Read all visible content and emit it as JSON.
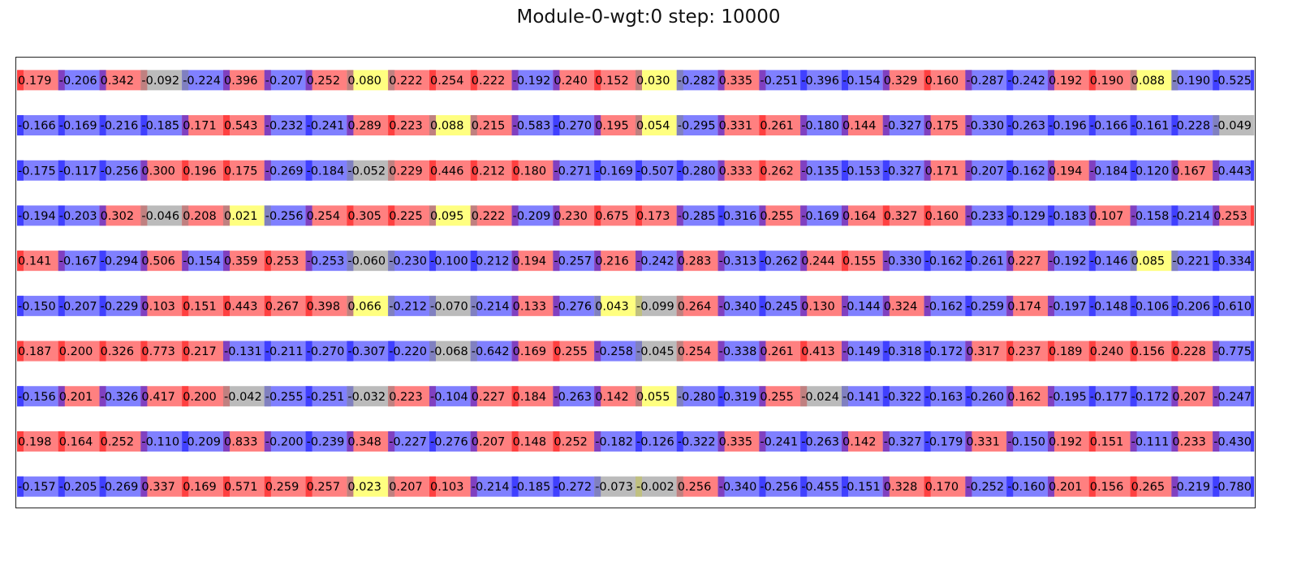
{
  "chart_data": {
    "type": "heatmap",
    "title": "Module-0-wgt:0 step: 10000",
    "xlabel": "",
    "ylabel": "",
    "grid": false,
    "legend": "none",
    "colors": {
      "positive": "#ff8080",
      "positive_edge": "#ff4040",
      "negative": "#8080ff",
      "negative_edge": "#4040ff",
      "near_zero": "#bbbbbb",
      "small_positive": "#ffff80",
      "mixed_edge": "#8040c0",
      "text": "#000000"
    },
    "rows": [
      [
        "0.179",
        "-0.206",
        "0.342",
        "-0.092",
        "-0.224",
        "0.396",
        "-0.207",
        "0.252",
        "0.080",
        "0.222",
        "0.254",
        "0.222",
        "-0.192",
        "0.240",
        "0.152",
        "0.030",
        "-0.282",
        "0.335",
        "-0.251",
        "-0.396",
        "-0.154",
        "0.329",
        "0.160",
        "-0.287",
        "-0.242",
        "0.192",
        "0.190",
        "0.088",
        "-0.190",
        "-0.525"
      ],
      [
        "-0.166",
        "-0.169",
        "-0.216",
        "-0.185",
        "0.171",
        "0.543",
        "-0.232",
        "-0.241",
        "0.289",
        "0.223",
        "0.088",
        "0.215",
        "-0.583",
        "-0.270",
        "0.195",
        "0.054",
        "-0.295",
        "0.331",
        "0.261",
        "-0.180",
        "0.144",
        "-0.327",
        "0.175",
        "-0.330",
        "-0.263",
        "-0.196",
        "-0.166",
        "-0.161",
        "-0.228",
        "-0.049"
      ],
      [
        "-0.175",
        "-0.117",
        "-0.256",
        "0.300",
        "0.196",
        "0.175",
        "-0.269",
        "-0.184",
        "-0.052",
        "0.229",
        "0.446",
        "0.212",
        "0.180",
        "-0.271",
        "-0.169",
        "-0.507",
        "-0.280",
        "0.333",
        "0.262",
        "-0.135",
        "-0.153",
        "-0.327",
        "0.171",
        "-0.207",
        "-0.162",
        "0.194",
        "-0.184",
        "-0.120",
        "0.167",
        "-0.443"
      ],
      [
        "-0.194",
        "-0.203",
        "0.302",
        "-0.046",
        "0.208",
        "0.021",
        "-0.256",
        "0.254",
        "0.305",
        "0.225",
        "0.095",
        "0.222",
        "-0.209",
        "0.230",
        "0.675",
        "0.173",
        "-0.285",
        "-0.316",
        "0.255",
        "-0.169",
        "0.164",
        "0.327",
        "0.160",
        "-0.233",
        "-0.129",
        "-0.183",
        "0.107",
        "-0.158",
        "-0.214",
        "0.253"
      ],
      [
        "0.141",
        "-0.167",
        "-0.294",
        "0.506",
        "-0.154",
        "0.359",
        "0.253",
        "-0.253",
        "-0.060",
        "-0.230",
        "-0.100",
        "-0.212",
        "0.194",
        "-0.257",
        "0.216",
        "-0.242",
        "0.283",
        "-0.313",
        "-0.262",
        "0.244",
        "0.155",
        "-0.330",
        "-0.162",
        "-0.261",
        "0.227",
        "-0.192",
        "-0.146",
        "0.085",
        "-0.221",
        "-0.334"
      ],
      [
        "-0.150",
        "-0.207",
        "-0.229",
        "0.103",
        "0.151",
        "0.443",
        "0.267",
        "0.398",
        "0.066",
        "-0.212",
        "-0.070",
        "-0.214",
        "0.133",
        "-0.276",
        "0.043",
        "-0.099",
        "0.264",
        "-0.340",
        "-0.245",
        "0.130",
        "-0.144",
        "0.324",
        "-0.162",
        "-0.259",
        "0.174",
        "-0.197",
        "-0.148",
        "-0.106",
        "-0.206",
        "-0.610"
      ],
      [
        "0.187",
        "0.200",
        "0.326",
        "0.773",
        "0.217",
        "-0.131",
        "-0.211",
        "-0.270",
        "-0.307",
        "-0.220",
        "-0.068",
        "-0.642",
        "0.169",
        "0.255",
        "-0.258",
        "-0.045",
        "0.254",
        "-0.338",
        "0.261",
        "0.413",
        "-0.149",
        "-0.318",
        "-0.172",
        "0.317",
        "0.237",
        "0.189",
        "0.240",
        "0.156",
        "0.228",
        "-0.775"
      ],
      [
        "-0.156",
        "0.201",
        "-0.326",
        "0.417",
        "0.200",
        "-0.042",
        "-0.255",
        "-0.251",
        "-0.032",
        "0.223",
        "-0.104",
        "0.227",
        "0.184",
        "-0.263",
        "0.142",
        "0.055",
        "-0.280",
        "-0.319",
        "0.255",
        "-0.024",
        "-0.141",
        "-0.322",
        "-0.163",
        "-0.260",
        "0.162",
        "-0.195",
        "-0.177",
        "-0.172",
        "0.207",
        "-0.247"
      ],
      [
        "0.198",
        "0.164",
        "0.252",
        "-0.110",
        "-0.209",
        "0.833",
        "-0.200",
        "-0.239",
        "0.348",
        "-0.227",
        "-0.276",
        "0.207",
        "0.148",
        "0.252",
        "-0.182",
        "-0.126",
        "-0.322",
        "0.335",
        "-0.241",
        "-0.263",
        "0.142",
        "-0.327",
        "-0.179",
        "0.331",
        "-0.150",
        "0.192",
        "0.151",
        "-0.111",
        "0.233",
        "-0.430"
      ],
      [
        "-0.157",
        "-0.205",
        "-0.269",
        "0.337",
        "0.169",
        "0.571",
        "0.259",
        "0.257",
        "0.023",
        "0.207",
        "0.103",
        "-0.214",
        "-0.185",
        "-0.272",
        "-0.073",
        "-0.002",
        "0.256",
        "-0.340",
        "-0.256",
        "-0.455",
        "-0.151",
        "0.328",
        "0.170",
        "-0.252",
        "-0.160",
        "0.201",
        "0.156",
        "0.265",
        "-0.219",
        "-0.780"
      ]
    ]
  }
}
